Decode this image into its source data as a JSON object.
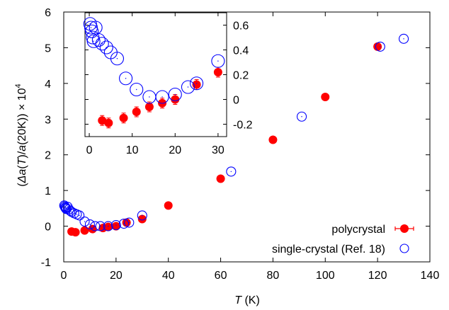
{
  "chart_data": [
    {
      "id": "main",
      "type": "scatter",
      "xlabel": "T (K)",
      "xlabel_parts": {
        "var": "T",
        "unit": " (K)"
      },
      "ylabel": "(Δa(T)/a(20K)) × 10^4",
      "ylabel_parts": {
        "p1": "(",
        "delta": "Δ",
        "a1": "a",
        "p2": "(",
        "T": "T",
        "p3": ")/",
        "a2": "a",
        "p4": "(20K)) × 10",
        "exp": "4"
      },
      "xlim": [
        0,
        140
      ],
      "ylim": [
        -1,
        6
      ],
      "xticks": [
        0,
        20,
        40,
        60,
        80,
        100,
        120,
        140
      ],
      "yticks": [
        -1,
        0,
        1,
        2,
        3,
        4,
        5,
        6
      ],
      "legend_position": "bottom-right",
      "series": [
        {
          "name": "polycrystal",
          "style": "filled-circle-with-errorbars",
          "color": "#ff0000",
          "x": [
            3,
            4.5,
            8,
            11,
            15,
            17,
            20,
            24,
            30,
            40,
            60,
            80,
            100,
            120
          ],
          "y": [
            -0.15,
            -0.17,
            -0.12,
            -0.08,
            -0.05,
            -0.02,
            0.0,
            0.1,
            0.2,
            0.58,
            1.33,
            2.42,
            3.62,
            5.03
          ]
        },
        {
          "name": "single-crystal (Ref. 18)",
          "style": "open-circle",
          "color": "#0000ff",
          "x": [
            0.2,
            0.4,
            0.6,
            0.8,
            1.0,
            1.5,
            2,
            2.5,
            3,
            4,
            5,
            6,
            8,
            10,
            12,
            14,
            17,
            20,
            23,
            25,
            30,
            64,
            91,
            121,
            130
          ],
          "y": [
            0.58,
            0.55,
            0.52,
            0.5,
            0.48,
            0.54,
            0.47,
            0.43,
            0.4,
            0.36,
            0.33,
            0.3,
            0.13,
            0.05,
            0.0,
            0.0,
            0.0,
            0.03,
            0.07,
            0.1,
            0.3,
            1.53,
            3.07,
            5.03,
            5.25
          ]
        }
      ]
    },
    {
      "id": "inset",
      "type": "scatter",
      "xlim": [
        -1,
        32
      ],
      "ylim": [
        -0.3,
        0.7
      ],
      "xticks": [
        0,
        10,
        20,
        30
      ],
      "yticks": [
        -0.2,
        0,
        0.2,
        0.4,
        0.6
      ],
      "series": [
        {
          "name": "polycrystal",
          "style": "filled-circle-with-errorbars",
          "color": "#ff0000",
          "x": [
            3,
            4.5,
            8,
            11,
            14,
            17,
            20,
            25,
            30
          ],
          "y": [
            -0.17,
            -0.19,
            -0.15,
            -0.1,
            -0.06,
            -0.03,
            0.0,
            0.12,
            0.22
          ]
        },
        {
          "name": "single-crystal (Ref. 18)",
          "style": "open-circle",
          "color": "#0000ff",
          "x": [
            0.2,
            0.4,
            0.6,
            0.8,
            1.0,
            1.5,
            2.2,
            3,
            4,
            5,
            6.5,
            8.5,
            11,
            14,
            17,
            20,
            23,
            25,
            30
          ],
          "y": [
            0.61,
            0.58,
            0.55,
            0.5,
            0.47,
            0.58,
            0.48,
            0.45,
            0.42,
            0.38,
            0.33,
            0.17,
            0.08,
            0.02,
            0.02,
            0.04,
            0.1,
            0.13,
            0.31
          ]
        }
      ]
    }
  ]
}
